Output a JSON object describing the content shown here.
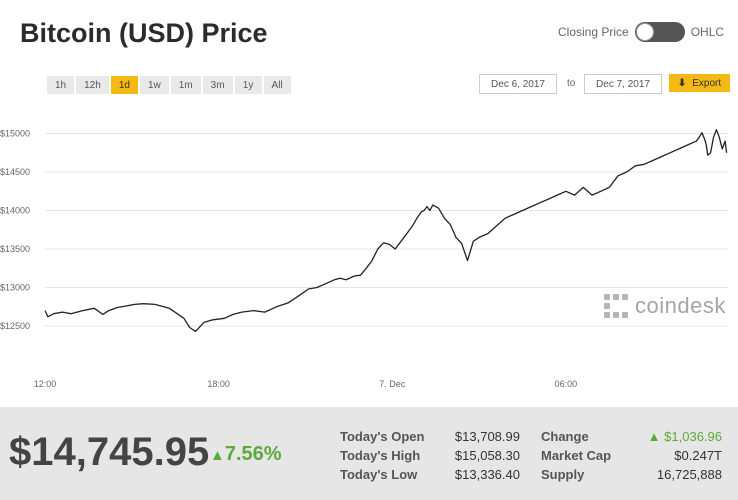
{
  "title": "Bitcoin (USD) Price",
  "toggle": {
    "left_label": "Closing Price",
    "right_label": "OHLC",
    "state": "Closing Price"
  },
  "ranges": [
    "1h",
    "12h",
    "1d",
    "1w",
    "1m",
    "3m",
    "1y",
    "All"
  ],
  "active_range": "1d",
  "date_from": "Dec 6, 2017",
  "date_sep": "to",
  "date_to": "Dec 7, 2017",
  "export_label": "Export",
  "export_icon": "down-arrow-icon",
  "brand": "coindesk",
  "colors": {
    "accent": "#f5b914",
    "positive": "#5aaa3c",
    "line": "#222222"
  },
  "price": "$14,745.95",
  "change_pct": "7.56%",
  "stats": {
    "todays_open_label": "Today's Open",
    "todays_open": "$13,708.99",
    "todays_high_label": "Today's High",
    "todays_high": "$15,058.30",
    "todays_low_label": "Today's Low",
    "todays_low": "$13,336.40",
    "change_label": "Change",
    "change": "$1,036.96",
    "market_cap_label": "Market Cap",
    "market_cap": "$0.247T",
    "supply_label": "Supply",
    "supply": "16,725,888"
  },
  "chart_data": {
    "type": "line",
    "title": "",
    "xlabel": "",
    "ylabel": "",
    "ylim": [
      12300,
      15150
    ],
    "yticks": [
      12500,
      13000,
      13500,
      14000,
      14500,
      15000
    ],
    "ytick_labels": [
      "$12500",
      "$13000",
      "$13500",
      "$14000",
      "$14500",
      "$15000"
    ],
    "xlim": [
      0,
      23.6
    ],
    "xticks": [
      0,
      6,
      12,
      18
    ],
    "xtick_labels": [
      "12:00",
      "18:00",
      "7. Dec",
      "06:00"
    ],
    "grid": true,
    "series": [
      {
        "x": [
          0,
          0.1,
          0.3,
          0.6,
          0.9,
          1.3,
          1.7,
          2.0,
          2.2,
          2.5,
          2.8,
          3.1,
          3.4,
          3.8,
          4.3,
          4.8,
          5.0,
          5.2,
          5.5,
          5.8,
          6.2,
          6.5,
          6.8,
          7.2,
          7.6,
          8.0,
          8.4,
          8.8,
          9.1,
          9.4,
          9.7,
          10.0,
          10.2,
          10.4,
          10.7,
          10.9,
          11.1,
          11.3,
          11.5,
          11.7,
          11.9,
          12.1,
          12.3,
          12.5,
          12.7,
          12.85,
          13.0,
          13.1,
          13.2,
          13.3,
          13.4,
          13.6,
          13.8,
          14.0,
          14.2,
          14.4,
          14.6,
          14.8,
          15.0,
          15.3,
          15.6,
          15.9,
          16.2,
          16.5,
          16.8,
          17.1,
          17.4,
          17.7,
          18.0,
          18.3,
          18.6,
          18.9,
          19.2,
          19.5,
          19.8,
          20.1,
          20.4,
          20.7,
          21.0,
          21.3,
          21.6,
          21.9,
          22.2,
          22.5,
          22.6,
          22.7,
          22.8,
          22.85,
          22.9,
          23.0,
          23.1,
          23.2,
          23.3,
          23.4,
          23.5,
          23.55
        ],
        "y": [
          12700,
          12620,
          12660,
          12680,
          12660,
          12700,
          12730,
          12650,
          12700,
          12740,
          12760,
          12780,
          12790,
          12780,
          12730,
          12600,
          12480,
          12430,
          12550,
          12580,
          12600,
          12650,
          12680,
          12700,
          12680,
          12750,
          12800,
          12900,
          12980,
          13000,
          13050,
          13100,
          13120,
          13100,
          13150,
          13160,
          13250,
          13350,
          13500,
          13580,
          13560,
          13500,
          13600,
          13700,
          13800,
          13900,
          13980,
          14000,
          14050,
          14000,
          14070,
          14030,
          13900,
          13820,
          13650,
          13570,
          13350,
          13600,
          13650,
          13700,
          13800,
          13900,
          13950,
          14000,
          14050,
          14100,
          14150,
          14200,
          14250,
          14200,
          14300,
          14200,
          14250,
          14300,
          14450,
          14500,
          14580,
          14600,
          14650,
          14700,
          14750,
          14800,
          14850,
          14900,
          14950,
          15010,
          14920,
          14850,
          14720,
          14750,
          14950,
          15050,
          14950,
          14800,
          14900,
          14750
        ]
      }
    ]
  }
}
